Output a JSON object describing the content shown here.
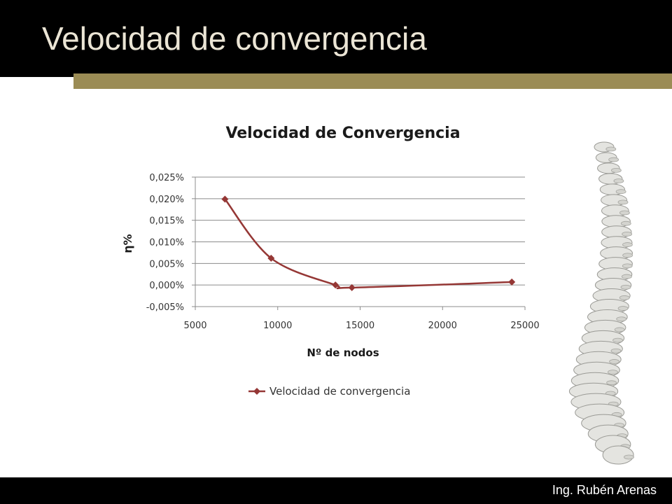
{
  "slide": {
    "title": "Velocidad de convergencia",
    "footer": "Ing. Rubén Arenas",
    "colors": {
      "header_bg": "#000000",
      "accent_bar": "#9b8c55",
      "title_text": "#ebe5d5"
    }
  },
  "chart_data": {
    "type": "line",
    "title": "Velocidad de Convergencia",
    "xlabel": "Nº de nodos",
    "ylabel": "η%",
    "xlim": [
      5000,
      25000
    ],
    "ylim": [
      -0.005,
      0.025
    ],
    "x_ticks": [
      5000,
      10000,
      15000,
      20000,
      25000
    ],
    "x_tick_labels": [
      "5000",
      "10000",
      "15000",
      "20000",
      "25000"
    ],
    "y_ticks": [
      -0.005,
      0.0,
      0.005,
      0.01,
      0.015,
      0.02,
      0.025
    ],
    "y_tick_labels": [
      "-0,005%",
      "0,000%",
      "0,005%",
      "0,010%",
      "0,015%",
      "0,020%",
      "0,025%"
    ],
    "grid": "horizontal",
    "legend_position": "bottom",
    "smooth": true,
    "series": [
      {
        "name": "Velocidad de convergencia",
        "color": "#953735",
        "marker": "diamond",
        "x": [
          6800,
          9600,
          13500,
          14500,
          24200
        ],
        "y": [
          0.0199,
          0.0062,
          0.0,
          -0.0006,
          0.0007
        ]
      }
    ]
  }
}
